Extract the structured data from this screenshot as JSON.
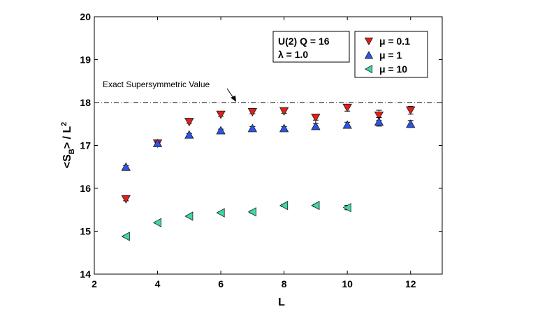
{
  "chart_data": {
    "type": "scatter",
    "xlabel": "L",
    "ylabel_parts": [
      "<S",
      "B",
      "> / L",
      "2"
    ],
    "xlim": [
      2,
      13
    ],
    "ylim": [
      14,
      20
    ],
    "xticks": [
      2,
      4,
      6,
      8,
      10,
      12
    ],
    "yticks": [
      14,
      15,
      16,
      17,
      18,
      19,
      20
    ],
    "xtick_labels": [
      "2",
      "4",
      "6",
      "8",
      "10",
      "12"
    ],
    "ytick_labels": [
      "14",
      "15",
      "16",
      "17",
      "18",
      "19",
      "20"
    ],
    "grid": false,
    "reference_line": {
      "y": 18,
      "style": "dash-dot",
      "label": "Exact Supersymmetric Value"
    },
    "info_box": {
      "line1": "U(2) Q = 16",
      "line2": "λ = 1.0"
    },
    "legend_position": "top-right",
    "series": [
      {
        "name": "μ = 0.1",
        "marker": "triangle-down",
        "color": "#e0201b",
        "x": [
          3,
          4,
          5,
          6,
          7,
          8,
          9,
          10,
          11,
          12
        ],
        "y": [
          15.75,
          17.05,
          17.55,
          17.72,
          17.78,
          17.8,
          17.65,
          17.88,
          17.7,
          17.82
        ],
        "err": [
          0.04,
          0.03,
          0.03,
          0.04,
          0.04,
          0.05,
          0.06,
          0.08,
          0.12,
          0.09
        ]
      },
      {
        "name": "μ = 1",
        "marker": "triangle-up",
        "color": "#2b55e6",
        "x": [
          3,
          4,
          5,
          6,
          7,
          8,
          9,
          10,
          11,
          12
        ],
        "y": [
          16.5,
          17.05,
          17.25,
          17.35,
          17.4,
          17.4,
          17.45,
          17.48,
          17.55,
          17.5
        ],
        "err": [
          0.03,
          0.03,
          0.03,
          0.03,
          0.04,
          0.04,
          0.06,
          0.06,
          0.1,
          0.08
        ]
      },
      {
        "name": "μ = 10",
        "marker": "triangle-left",
        "color": "#3fd9a0",
        "x": [
          3,
          4,
          5,
          6,
          7,
          8,
          9,
          10
        ],
        "y": [
          14.88,
          15.2,
          15.35,
          15.43,
          15.45,
          15.6,
          15.6,
          15.55
        ],
        "err": [
          0.02,
          0.02,
          0.02,
          0.02,
          0.03,
          0.03,
          0.03,
          0.05
        ]
      }
    ]
  }
}
